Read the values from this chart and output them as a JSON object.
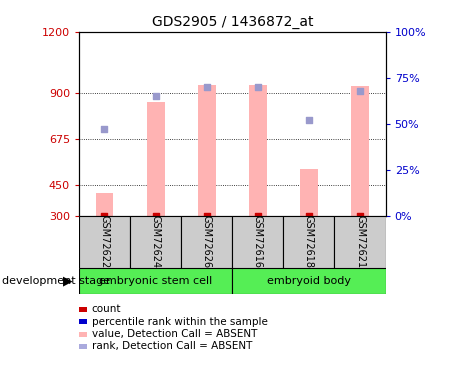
{
  "title": "GDS2905 / 1436872_at",
  "samples": [
    "GSM72622",
    "GSM72624",
    "GSM72626",
    "GSM72616",
    "GSM72618",
    "GSM72621"
  ],
  "bar_values": [
    410,
    855,
    940,
    940,
    530,
    935
  ],
  "rank_values": [
    47,
    65,
    70,
    70,
    52,
    68
  ],
  "ylim_left": [
    300,
    1200
  ],
  "ylim_right": [
    0,
    100
  ],
  "yticks_left": [
    300,
    450,
    675,
    900,
    1200
  ],
  "yticks_right": [
    0,
    25,
    50,
    75,
    100
  ],
  "ytick_labels_right": [
    "0%",
    "25%",
    "50%",
    "75%",
    "100%"
  ],
  "bar_color": "#ffb3b3",
  "rank_color": "#9999cc",
  "count_color": "#cc0000",
  "group1_label": "embryonic stem cell",
  "group2_label": "embryoid body",
  "group1_indices": [
    0,
    1,
    2
  ],
  "group2_indices": [
    3,
    4,
    5
  ],
  "group_bg_color": "#55ee55",
  "sample_bg_color": "#cccccc",
  "legend_items": [
    {
      "label": "count",
      "color": "#cc0000"
    },
    {
      "label": "percentile rank within the sample",
      "color": "#0000cc"
    },
    {
      "label": "value, Detection Call = ABSENT",
      "color": "#ffb3b3"
    },
    {
      "label": "rank, Detection Call = ABSENT",
      "color": "#aaaadd"
    }
  ],
  "dev_stage_label": "development stage",
  "left_label_color": "#cc0000",
  "right_label_color": "#0000cc",
  "bar_width": 0.35
}
